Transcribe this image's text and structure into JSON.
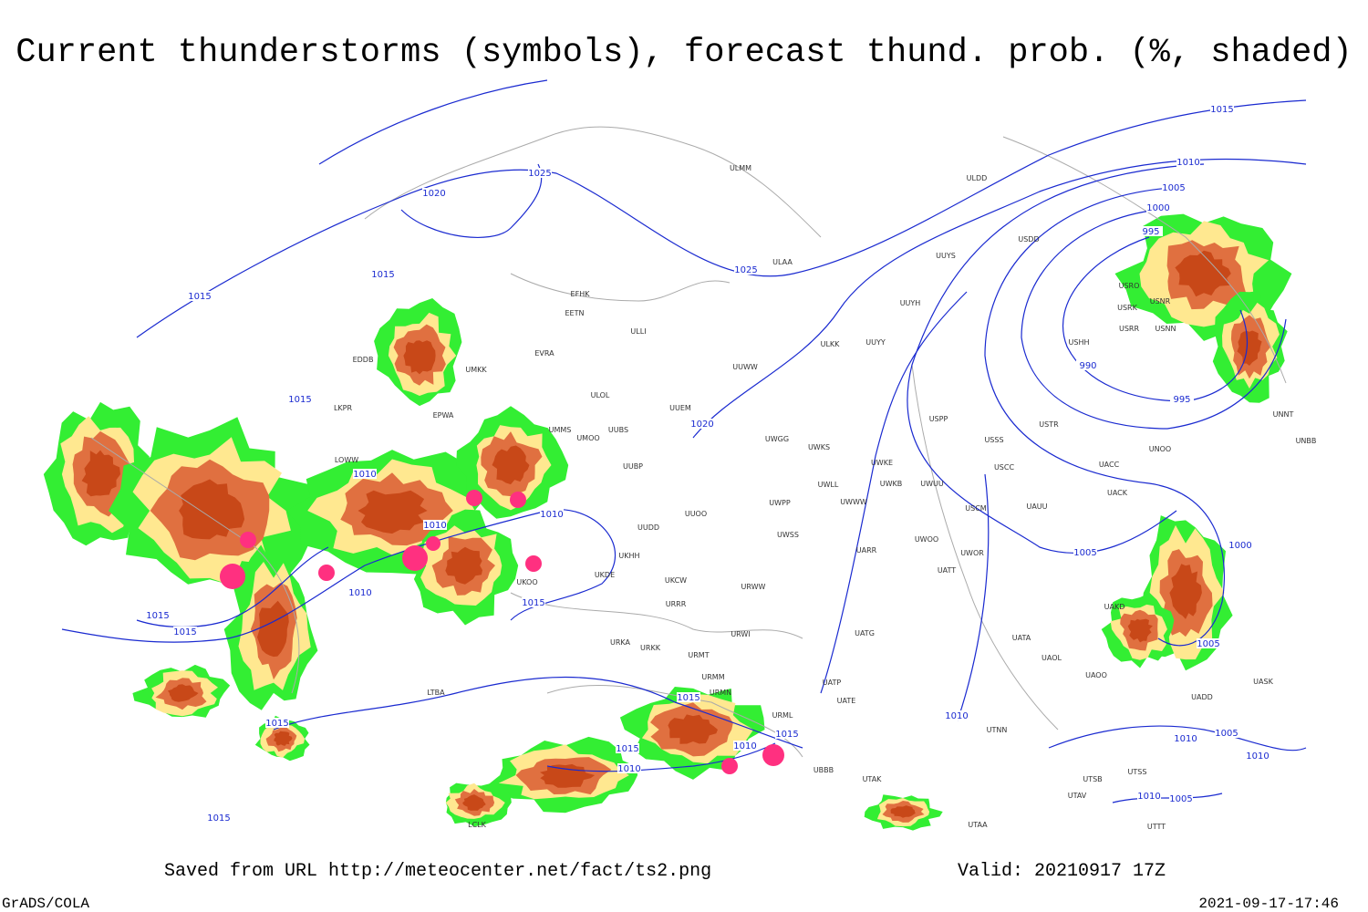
{
  "header": {
    "title": "Current thunderstorms (symbols), forecast thund. prob. (%, shaded)"
  },
  "footer": {
    "source": "Saved from URL http://meteocenter.net/fact/ts2.png",
    "valid": "Valid: 20210917 17Z",
    "software": "GrADS/COLA",
    "timestamp": "2021-09-17-17:46"
  },
  "map": {
    "isobar_labels": [
      1015,
      1010,
      1005,
      1000,
      995,
      990,
      995,
      1025,
      1020,
      1025,
      1015,
      1015,
      1015,
      1020,
      1010,
      1010,
      1010,
      1010,
      1015,
      1015,
      1015,
      1015,
      1015,
      1015,
      1010,
      1015,
      1010,
      1015,
      1010,
      1005,
      1000,
      1005,
      1010,
      1005,
      1010,
      1010,
      1005
    ],
    "stations": [
      "ULMM",
      "ULDD",
      "USDD",
      "ULAA",
      "UUYS",
      "EFHK",
      "EETN",
      "UUYH",
      "ULLI",
      "ULKK",
      "UUYY",
      "EVRA",
      "ULOL",
      "UMKK",
      "EDDB",
      "UUWW",
      "USRO",
      "USNR",
      "USRK",
      "USRR",
      "USNN",
      "USHH",
      "UUEM",
      "EPWA",
      "LKPR",
      "LOWW",
      "UMMS",
      "UMOO",
      "UUBS",
      "UWGG",
      "UWKS",
      "USSS",
      "USPP",
      "USTR",
      "UNNT",
      "UNBB",
      "UNOO",
      "UUBP",
      "UWKE",
      "UWKB",
      "UWUU",
      "USCC",
      "UACC",
      "UACK",
      "UWLL",
      "UWWW",
      "USCM",
      "UAUU",
      "UUOO",
      "UWPP",
      "UUDD",
      "UWSS",
      "UKHH",
      "UKDE",
      "UKOO",
      "UARR",
      "UWOO",
      "UWOR",
      "UATT",
      "UKCW",
      "URWW",
      "URRR",
      "UAKD",
      "UATG",
      "URWI",
      "UATA",
      "URKA",
      "URKK",
      "URMT",
      "UAOL",
      "UAOO",
      "URMM",
      "URMN",
      "UATP",
      "UATE",
      "URML",
      "UASK",
      "UADD",
      "UTAK",
      "UBBB",
      "UTNN",
      "UTSS",
      "UTSB",
      "UTAV",
      "UTTT",
      "UTAA",
      "LCLK",
      "LTBA"
    ]
  }
}
